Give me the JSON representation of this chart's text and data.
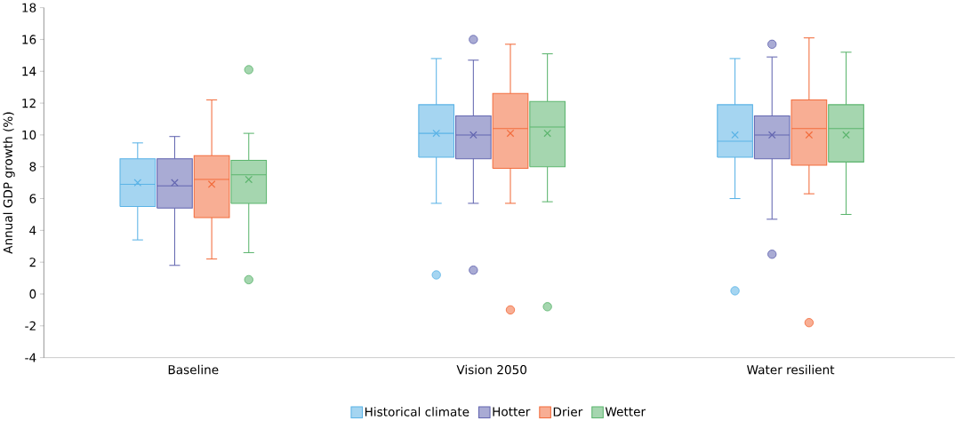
{
  "chart_data": {
    "type": "box",
    "ylabel": "Annual GDP growth (%)",
    "categories": [
      "Baseline",
      "Vision 2050",
      "Water resilient"
    ],
    "ylim": [
      -4,
      18
    ],
    "yticks": [
      -4,
      -2,
      0,
      2,
      4,
      6,
      8,
      10,
      12,
      14,
      16,
      18
    ],
    "grid": false,
    "legend": "bottom",
    "series": [
      {
        "name": "Historical climate",
        "color": "#5bb3e6",
        "boxes": [
          {
            "low": 3.4,
            "q1": 5.5,
            "median": 6.9,
            "q3": 8.5,
            "high": 9.5,
            "mean": 7.0
          },
          {
            "low": 5.7,
            "q1": 8.6,
            "median": 10.1,
            "q3": 11.9,
            "high": 14.8,
            "mean": 10.1,
            "outliers": [
              1.2
            ]
          },
          {
            "low": 6.0,
            "q1": 8.6,
            "median": 9.6,
            "q3": 11.9,
            "high": 14.8,
            "mean": 10.0,
            "outliers": [
              0.2
            ]
          }
        ]
      },
      {
        "name": "Hotter",
        "color": "#6366b0",
        "boxes": [
          {
            "low": 1.8,
            "q1": 5.4,
            "median": 6.8,
            "q3": 8.5,
            "high": 9.9,
            "mean": 7.0
          },
          {
            "low": 5.7,
            "q1": 8.5,
            "median": 10.0,
            "q3": 11.2,
            "high": 14.7,
            "mean": 10.0,
            "outliers": [
              16.0,
              1.5
            ]
          },
          {
            "low": 4.7,
            "q1": 8.5,
            "median": 10.0,
            "q3": 11.2,
            "high": 14.9,
            "mean": 10.0,
            "outliers": [
              15.7,
              2.5
            ]
          }
        ]
      },
      {
        "name": "Drier",
        "color": "#f26c3c",
        "boxes": [
          {
            "low": 2.2,
            "q1": 4.8,
            "median": 7.2,
            "q3": 8.7,
            "high": 12.2,
            "mean": 6.9
          },
          {
            "low": 5.7,
            "q1": 7.9,
            "median": 10.4,
            "q3": 12.6,
            "high": 15.7,
            "mean": 10.1,
            "outliers": [
              -1.0
            ]
          },
          {
            "low": 6.3,
            "q1": 8.1,
            "median": 10.4,
            "q3": 12.2,
            "high": 16.1,
            "mean": 10.0,
            "outliers": [
              -1.8
            ]
          }
        ]
      },
      {
        "name": "Wetter",
        "color": "#5cb56e",
        "boxes": [
          {
            "low": 2.6,
            "q1": 5.7,
            "median": 7.5,
            "q3": 8.4,
            "high": 10.1,
            "mean": 7.2,
            "outliers": [
              14.1,
              0.9
            ]
          },
          {
            "low": 5.8,
            "q1": 8.0,
            "median": 10.5,
            "q3": 12.1,
            "high": 15.1,
            "mean": 10.1,
            "outliers": [
              -0.8
            ]
          },
          {
            "low": 5.0,
            "q1": 8.3,
            "median": 10.4,
            "q3": 11.9,
            "high": 15.2,
            "mean": 10.0
          }
        ]
      }
    ]
  }
}
